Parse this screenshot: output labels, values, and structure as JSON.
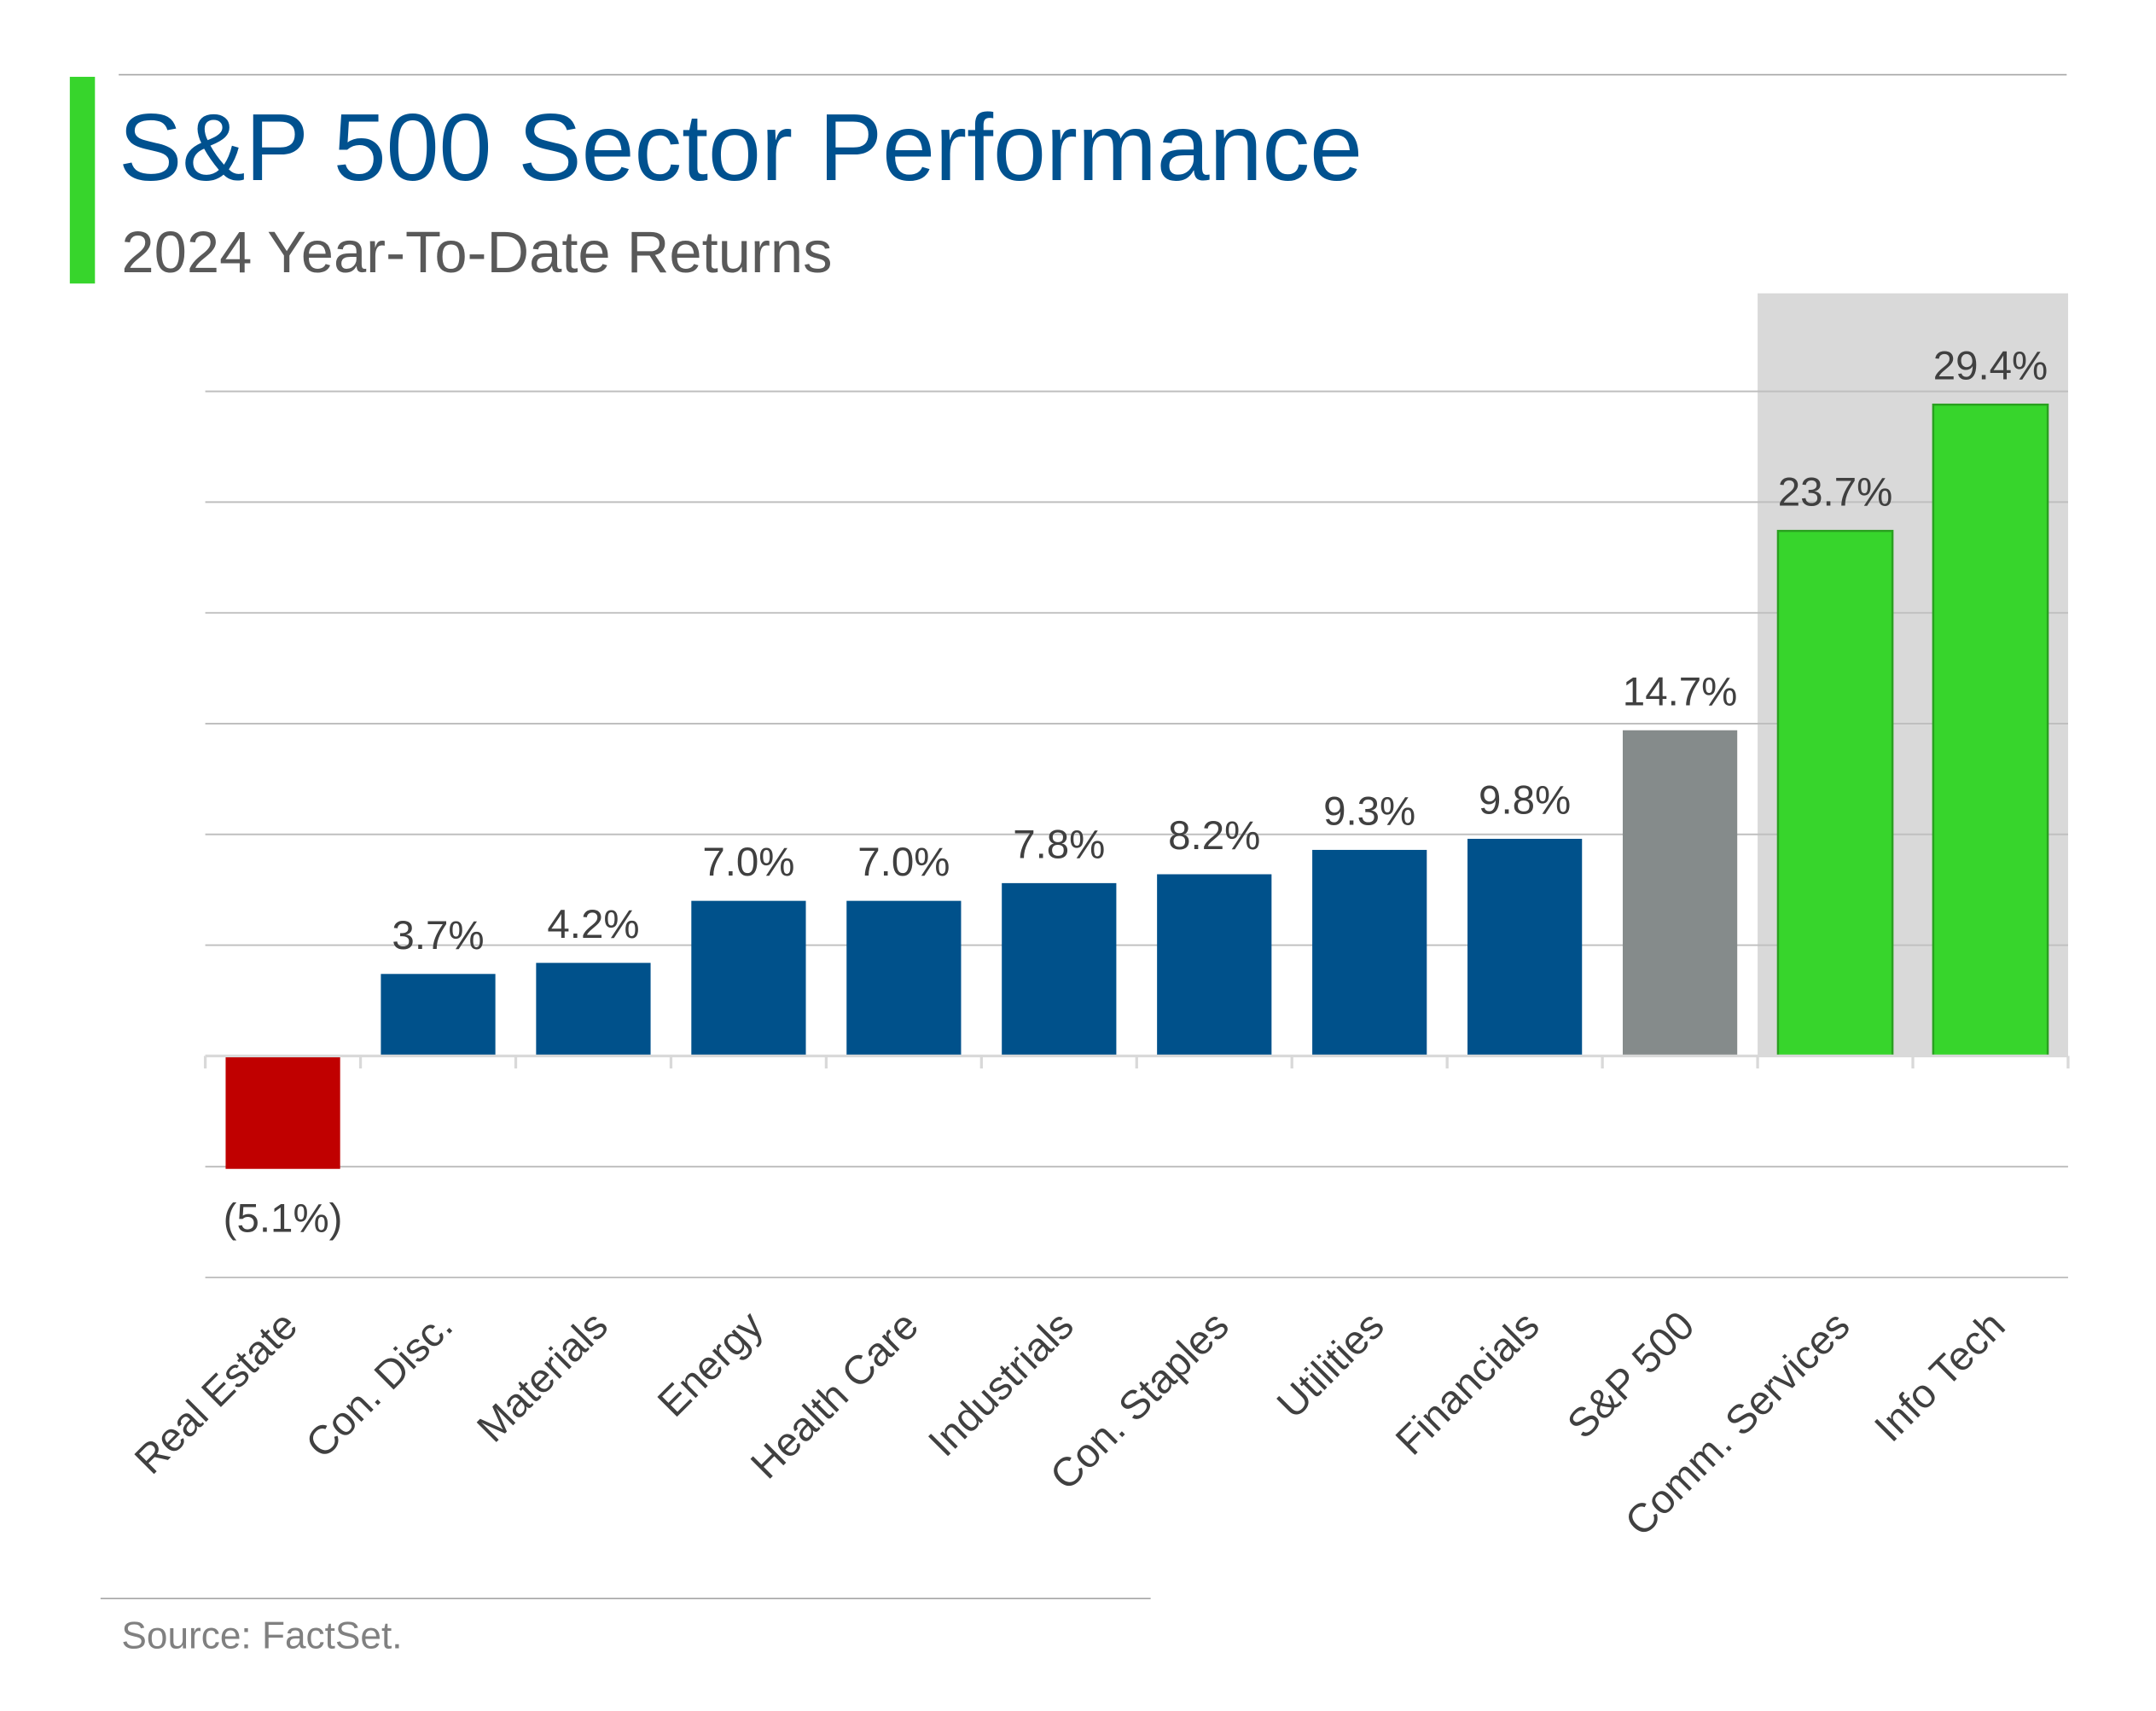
{
  "header": {
    "title": "S&P 500 Sector Performance",
    "subtitle": "2024 Year-To-Date Returns"
  },
  "footer": {
    "source": "Source: FactSet."
  },
  "colors": {
    "title": "#00518f",
    "subtitle": "#595959",
    "accent": "#37d52c",
    "sector_bar": "#00518b",
    "negative_bar": "#c00000",
    "benchmark_bar": "#858b8b",
    "top_sector_bar": "#37d52c",
    "highlight_panel": "#d9d9d9",
    "gridline": "#bfbfbf",
    "label": "#404040",
    "source": "#808080"
  },
  "chart_data": {
    "type": "bar",
    "title": "S&P 500 Sector Performance",
    "subtitle": "2024 Year-To-Date Returns",
    "xlabel": "",
    "ylabel": "",
    "ylim": [
      -10,
      30
    ],
    "grid": true,
    "y_axis_labels_shown": false,
    "legend": "none",
    "categories": [
      "Real Estate",
      "Con. Disc.",
      "Materials",
      "Energy",
      "Health Care",
      "Industrials",
      "Con. Staples",
      "Utilities",
      "Financials",
      "S&P 500",
      "Comm. Services",
      "Info Tech"
    ],
    "values": [
      -5.1,
      3.7,
      4.2,
      7.0,
      7.0,
      7.8,
      8.2,
      9.3,
      9.8,
      14.7,
      23.7,
      29.4
    ],
    "value_labels": [
      "(5.1%)",
      "3.7%",
      "4.2%",
      "7.0%",
      "7.0%",
      "7.8%",
      "8.2%",
      "9.3%",
      "9.8%",
      "14.7%",
      "23.7%",
      "29.4%"
    ],
    "bar_color_roles": [
      "negative_bar",
      "sector_bar",
      "sector_bar",
      "sector_bar",
      "sector_bar",
      "sector_bar",
      "sector_bar",
      "sector_bar",
      "sector_bar",
      "benchmark_bar",
      "top_sector_bar",
      "top_sector_bar"
    ],
    "highlighted_categories": [
      "Comm. Services",
      "Info Tech"
    ],
    "x_label_rotation_deg": -45
  }
}
